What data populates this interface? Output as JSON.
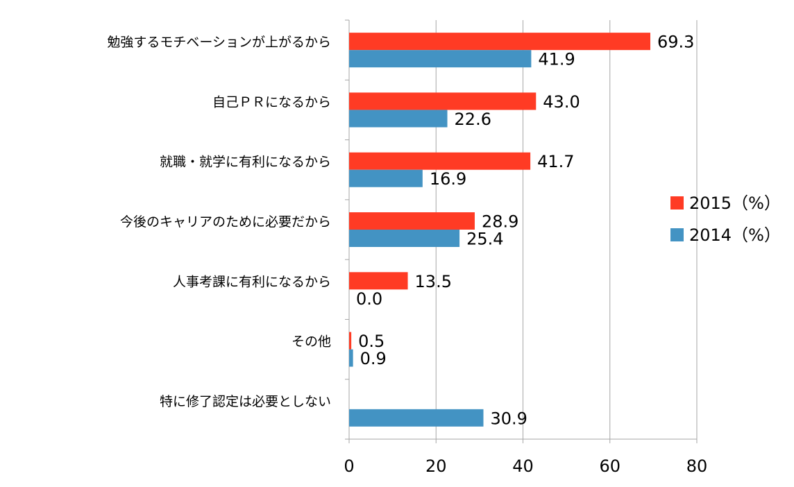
{
  "chart_data": {
    "type": "bar",
    "orientation": "horizontal",
    "categories": [
      "勉強するモチベーションが上がるから",
      "自己ＰＲになるから",
      "就職・就学に有利になるから",
      "今後のキャリアのために必要だから",
      "人事考課に有利になるから",
      "その他",
      "特に修了認定は必要としない"
    ],
    "series": [
      {
        "name": "2015（%）",
        "color": "#ff3b24",
        "values": [
          69.3,
          43.0,
          41.7,
          28.9,
          13.5,
          0.5,
          null
        ],
        "labels": [
          "69.3",
          "43.0",
          "41.7",
          "28.9",
          "13.5",
          "0.5",
          ""
        ]
      },
      {
        "name": "2014（%）",
        "color": "#4393c3",
        "values": [
          41.9,
          22.6,
          16.9,
          25.4,
          0.0,
          0.9,
          30.9
        ],
        "labels": [
          "41.9",
          "22.6",
          "16.9",
          "25.4",
          "0.0",
          "0.9",
          "30.9"
        ]
      }
    ],
    "xlim": [
      0,
      80
    ],
    "xticks": [
      "0",
      "20",
      "40",
      "60",
      "80"
    ],
    "grid": true,
    "legend_position": "right",
    "title": "",
    "xlabel": "",
    "ylabel": ""
  }
}
